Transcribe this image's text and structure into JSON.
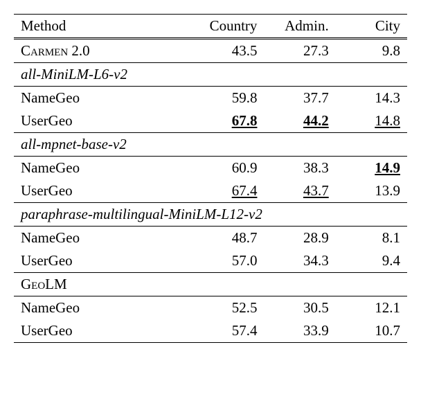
{
  "table": {
    "columns": [
      "Method",
      "Country",
      "Admin.",
      "City"
    ],
    "column_alignments": [
      "left",
      "right",
      "right",
      "right"
    ],
    "column_widths": [
      "45%",
      "18.3%",
      "18.3%",
      "18.3%"
    ],
    "font_family": "Times New Roman",
    "font_size": 21,
    "text_color": "#000000",
    "background_color": "#ffffff",
    "border_color": "#000000",
    "sections": [
      {
        "type": "row",
        "method": "Carmen 2.0",
        "method_style": "smallcaps",
        "values": [
          "43.5",
          "27.3",
          "9.8"
        ],
        "value_styles": [
          "plain",
          "plain",
          "plain"
        ],
        "border_bottom": true
      },
      {
        "type": "header",
        "label": "all-MiniLM-L6-v2",
        "border_bottom": true
      },
      {
        "type": "row",
        "method": "NameGeo",
        "method_style": "plain",
        "values": [
          "59.8",
          "37.7",
          "14.3"
        ],
        "value_styles": [
          "plain",
          "plain",
          "plain"
        ],
        "border_bottom": false
      },
      {
        "type": "row",
        "method": "UserGeo",
        "method_style": "plain",
        "values": [
          "67.8",
          "44.2",
          "14.8"
        ],
        "value_styles": [
          "bold-underline",
          "bold-underline",
          "underline"
        ],
        "border_bottom": true
      },
      {
        "type": "header",
        "label": "all-mpnet-base-v2",
        "border_bottom": true
      },
      {
        "type": "row",
        "method": "NameGeo",
        "method_style": "plain",
        "values": [
          "60.9",
          "38.3",
          "14.9"
        ],
        "value_styles": [
          "plain",
          "plain",
          "bold-underline"
        ],
        "border_bottom": false
      },
      {
        "type": "row",
        "method": "UserGeo",
        "method_style": "plain",
        "values": [
          "67.4",
          "43.7",
          "13.9"
        ],
        "value_styles": [
          "underline",
          "underline",
          "plain"
        ],
        "border_bottom": true
      },
      {
        "type": "header",
        "label": "paraphrase-multilingual-MiniLM-L12-v2",
        "border_bottom": true
      },
      {
        "type": "row",
        "method": "NameGeo",
        "method_style": "plain",
        "values": [
          "48.7",
          "28.9",
          "8.1"
        ],
        "value_styles": [
          "plain",
          "plain",
          "plain"
        ],
        "border_bottom": false
      },
      {
        "type": "row",
        "method": "UserGeo",
        "method_style": "plain",
        "values": [
          "57.0",
          "34.3",
          "9.4"
        ],
        "value_styles": [
          "plain",
          "plain",
          "plain"
        ],
        "border_bottom": true
      },
      {
        "type": "header-plain",
        "label": "GeoLM",
        "label_style": "smallcaps",
        "border_bottom": true
      },
      {
        "type": "row",
        "method": "NameGeo",
        "method_style": "plain",
        "values": [
          "52.5",
          "30.5",
          "12.1"
        ],
        "value_styles": [
          "plain",
          "plain",
          "plain"
        ],
        "border_bottom": false
      },
      {
        "type": "row",
        "method": "UserGeo",
        "method_style": "plain",
        "values": [
          "57.4",
          "33.9",
          "10.7"
        ],
        "value_styles": [
          "plain",
          "plain",
          "plain"
        ],
        "border_bottom": true
      }
    ]
  }
}
